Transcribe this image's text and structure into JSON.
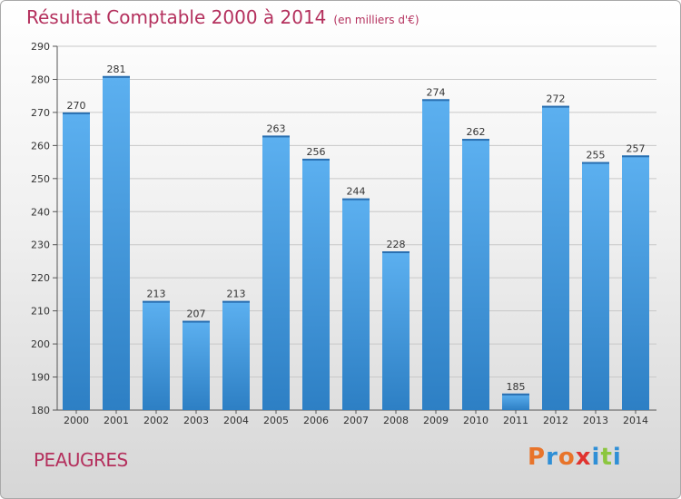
{
  "header": {
    "title": "Résultat Comptable 2000 à 2014",
    "subtitle": "(en milliers d'€)"
  },
  "footer": {
    "city": "PEAUGRES",
    "logo_letters": [
      "P",
      "r",
      "o",
      "x",
      "i",
      "t",
      "i"
    ],
    "logo_colors": [
      "#e8742a",
      "#2f8fd6",
      "#e8742a",
      "#e0332f",
      "#2f8fd6",
      "#8cc63f",
      "#2f8fd6"
    ]
  },
  "chart_data": {
    "type": "bar",
    "title": "Résultat Comptable 2000 à 2014",
    "subtitle": "(en milliers d'€)",
    "xlabel": "",
    "ylabel": "",
    "categories": [
      "2000",
      "2001",
      "2002",
      "2003",
      "2004",
      "2005",
      "2006",
      "2007",
      "2008",
      "2009",
      "2010",
      "2011",
      "2012",
      "2013",
      "2014"
    ],
    "values": [
      270,
      281,
      213,
      207,
      213,
      263,
      256,
      244,
      228,
      274,
      262,
      185,
      272,
      255,
      257
    ],
    "ylim": [
      180,
      290
    ],
    "yticks": [
      180,
      190,
      200,
      210,
      220,
      230,
      240,
      250,
      260,
      270,
      280,
      290
    ],
    "grid": true,
    "bar_color": "#3a8fd8",
    "bar_color_light": "#5aaef0"
  }
}
